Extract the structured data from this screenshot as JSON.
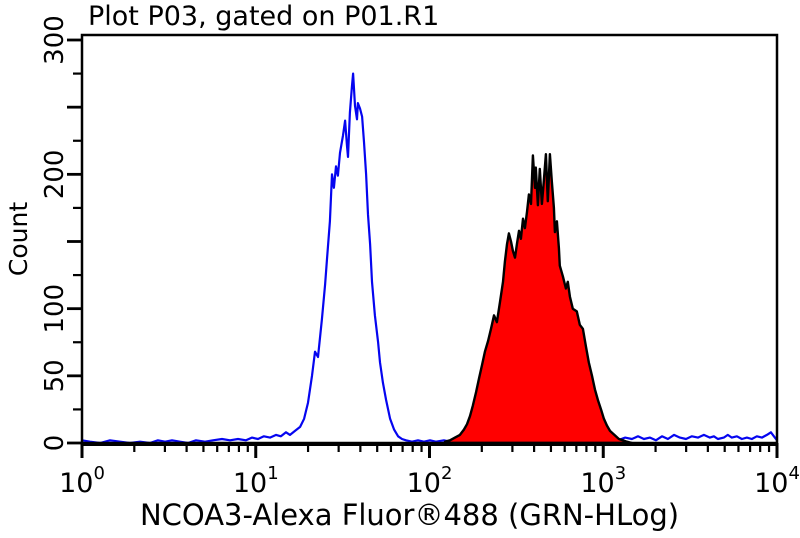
{
  "chart_data": {
    "type": "line",
    "subtype": "flow-cytometry-histogram-overlay",
    "title": "Plot P03, gated on P01.R1",
    "xlabel": "NCOA3-Alexa Fluor®488 (GRN-HLog)",
    "ylabel": "Count",
    "grid": false,
    "legend": "none",
    "x_axis": {
      "scale": "log10",
      "range_log10": [
        0,
        4
      ],
      "tick_label_base": "10",
      "tick_exponents": [
        0,
        1,
        2,
        3,
        4
      ]
    },
    "y_axis": {
      "lim": [
        0,
        300
      ],
      "minor_step": 25,
      "long_ticks": [
        0,
        50,
        100,
        150,
        200,
        250,
        300
      ],
      "labeled_ticks": [
        0,
        50,
        100,
        200,
        300
      ]
    },
    "series": [
      {
        "name": "control-open-histogram",
        "color": "#0505f0",
        "fill": "none",
        "peak_log10": 1.56,
        "peak_count": 275,
        "points_log10_count": [
          [
            0.0,
            2
          ],
          [
            0.046,
            1
          ],
          [
            0.104,
            0
          ],
          [
            0.161,
            2
          ],
          [
            0.219,
            1
          ],
          [
            0.276,
            0
          ],
          [
            0.334,
            1
          ],
          [
            0.391,
            0
          ],
          [
            0.437,
            2
          ],
          [
            0.478,
            1
          ],
          [
            0.518,
            2
          ],
          [
            0.564,
            1
          ],
          [
            0.61,
            0
          ],
          [
            0.656,
            2
          ],
          [
            0.708,
            1
          ],
          [
            0.754,
            2
          ],
          [
            0.806,
            3
          ],
          [
            0.852,
            2
          ],
          [
            0.898,
            3
          ],
          [
            0.944,
            2
          ],
          [
            0.978,
            4
          ],
          [
            1.013,
            3
          ],
          [
            1.047,
            5
          ],
          [
            1.082,
            4
          ],
          [
            1.117,
            6
          ],
          [
            1.145,
            5
          ],
          [
            1.174,
            8
          ],
          [
            1.197,
            6
          ],
          [
            1.226,
            9
          ],
          [
            1.255,
            12
          ],
          [
            1.278,
            18
          ],
          [
            1.301,
            30
          ],
          [
            1.324,
            50
          ],
          [
            1.341,
            68
          ],
          [
            1.358,
            64
          ],
          [
            1.381,
            92
          ],
          [
            1.399,
            118
          ],
          [
            1.41,
            137
          ],
          [
            1.427,
            165
          ],
          [
            1.439,
            200
          ],
          [
            1.45,
            190
          ],
          [
            1.462,
            206
          ],
          [
            1.473,
            199
          ],
          [
            1.485,
            216
          ],
          [
            1.502,
            229
          ],
          [
            1.514,
            240
          ],
          [
            1.525,
            221
          ],
          [
            1.531,
            213
          ],
          [
            1.542,
            246
          ],
          [
            1.554,
            266
          ],
          [
            1.56,
            275
          ],
          [
            1.571,
            251
          ],
          [
            1.583,
            241
          ],
          [
            1.588,
            253
          ],
          [
            1.6,
            249
          ],
          [
            1.612,
            243
          ],
          [
            1.623,
            224
          ],
          [
            1.635,
            200
          ],
          [
            1.646,
            170
          ],
          [
            1.658,
            148
          ],
          [
            1.669,
            120
          ],
          [
            1.686,
            95
          ],
          [
            1.704,
            75
          ],
          [
            1.715,
            60
          ],
          [
            1.732,
            45
          ],
          [
            1.75,
            32
          ],
          [
            1.773,
            18
          ],
          [
            1.796,
            10
          ],
          [
            1.819,
            5
          ],
          [
            1.842,
            3
          ],
          [
            1.865,
            2
          ],
          [
            1.899,
            1
          ],
          [
            1.934,
            2
          ],
          [
            1.968,
            1
          ],
          [
            2.003,
            2
          ],
          [
            2.037,
            1
          ],
          [
            2.083,
            2
          ],
          [
            2.118,
            1
          ],
          [
            2.164,
            2
          ],
          [
            2.21,
            1
          ],
          [
            2.256,
            2
          ],
          [
            2.302,
            1
          ],
          [
            2.348,
            2
          ],
          [
            2.406,
            1
          ],
          [
            2.463,
            2
          ],
          [
            2.521,
            1
          ],
          [
            2.578,
            2
          ],
          [
            2.635,
            1
          ],
          [
            2.693,
            2
          ],
          [
            2.751,
            1
          ],
          [
            2.808,
            2
          ],
          [
            2.866,
            1
          ],
          [
            2.924,
            2
          ],
          [
            2.981,
            1
          ],
          [
            3.039,
            3
          ],
          [
            3.085,
            2
          ],
          [
            3.125,
            4
          ],
          [
            3.165,
            3
          ],
          [
            3.2,
            5
          ],
          [
            3.234,
            3
          ],
          [
            3.269,
            4
          ],
          [
            3.303,
            2
          ],
          [
            3.338,
            5
          ],
          [
            3.372,
            3
          ],
          [
            3.407,
            6
          ],
          [
            3.441,
            4
          ],
          [
            3.476,
            3
          ],
          [
            3.51,
            5
          ],
          [
            3.545,
            4
          ],
          [
            3.579,
            6
          ],
          [
            3.614,
            4
          ],
          [
            3.637,
            5
          ],
          [
            3.66,
            3
          ],
          [
            3.694,
            4
          ],
          [
            3.717,
            6
          ],
          [
            3.74,
            4
          ],
          [
            3.769,
            5
          ],
          [
            3.798,
            3
          ],
          [
            3.827,
            4
          ],
          [
            3.855,
            3
          ],
          [
            3.884,
            5
          ],
          [
            3.913,
            4
          ],
          [
            3.942,
            6
          ],
          [
            3.965,
            8
          ],
          [
            3.982,
            5
          ],
          [
            4.0,
            2
          ]
        ]
      },
      {
        "name": "ncoa3-stained-filled-histogram",
        "color": "#000000",
        "fill": "#ff0000",
        "peak_log10": 2.69,
        "peak_count": 215,
        "points_log10_count": [
          [
            2.089,
            1
          ],
          [
            2.118,
            2
          ],
          [
            2.147,
            4
          ],
          [
            2.175,
            6
          ],
          [
            2.198,
            10
          ],
          [
            2.216,
            14
          ],
          [
            2.233,
            20
          ],
          [
            2.25,
            28
          ],
          [
            2.268,
            38
          ],
          [
            2.285,
            48
          ],
          [
            2.302,
            58
          ],
          [
            2.319,
            68
          ],
          [
            2.337,
            76
          ],
          [
            2.354,
            85
          ],
          [
            2.371,
            95
          ],
          [
            2.388,
            90
          ],
          [
            2.406,
            105
          ],
          [
            2.423,
            120
          ],
          [
            2.434,
            135
          ],
          [
            2.446,
            148
          ],
          [
            2.457,
            156
          ],
          [
            2.469,
            150
          ],
          [
            2.48,
            143
          ],
          [
            2.492,
            138
          ],
          [
            2.503,
            148
          ],
          [
            2.515,
            158
          ],
          [
            2.526,
            152
          ],
          [
            2.538,
            167
          ],
          [
            2.549,
            160
          ],
          [
            2.561,
            172
          ],
          [
            2.572,
            185
          ],
          [
            2.584,
            178
          ],
          [
            2.595,
            214
          ],
          [
            2.607,
            190
          ],
          [
            2.612,
            205
          ],
          [
            2.624,
            177
          ],
          [
            2.635,
            204
          ],
          [
            2.647,
            178
          ],
          [
            2.658,
            195
          ],
          [
            2.67,
            215
          ],
          [
            2.681,
            180
          ],
          [
            2.693,
            215
          ],
          [
            2.704,
            195
          ],
          [
            2.716,
            175
          ],
          [
            2.722,
            157
          ],
          [
            2.733,
            165
          ],
          [
            2.745,
            145
          ],
          [
            2.75,
            132
          ],
          [
            2.768,
            124
          ],
          [
            2.785,
            115
          ],
          [
            2.796,
            120
          ],
          [
            2.808,
            109
          ],
          [
            2.825,
            100
          ],
          [
            2.848,
            98
          ],
          [
            2.865,
            88
          ],
          [
            2.883,
            85
          ],
          [
            2.9,
            72
          ],
          [
            2.917,
            60
          ],
          [
            2.935,
            50
          ],
          [
            2.952,
            40
          ],
          [
            2.969,
            32
          ],
          [
            2.987,
            25
          ],
          [
            3.004,
            18
          ],
          [
            3.021,
            13
          ],
          [
            3.039,
            9
          ],
          [
            3.056,
            7
          ],
          [
            3.073,
            5
          ],
          [
            3.09,
            3
          ],
          [
            3.113,
            2
          ],
          [
            3.136,
            1
          ],
          [
            3.165,
            0
          ]
        ]
      }
    ]
  },
  "colors": {
    "background": "#ffffff",
    "axis": "#000000",
    "text": "#000000"
  }
}
